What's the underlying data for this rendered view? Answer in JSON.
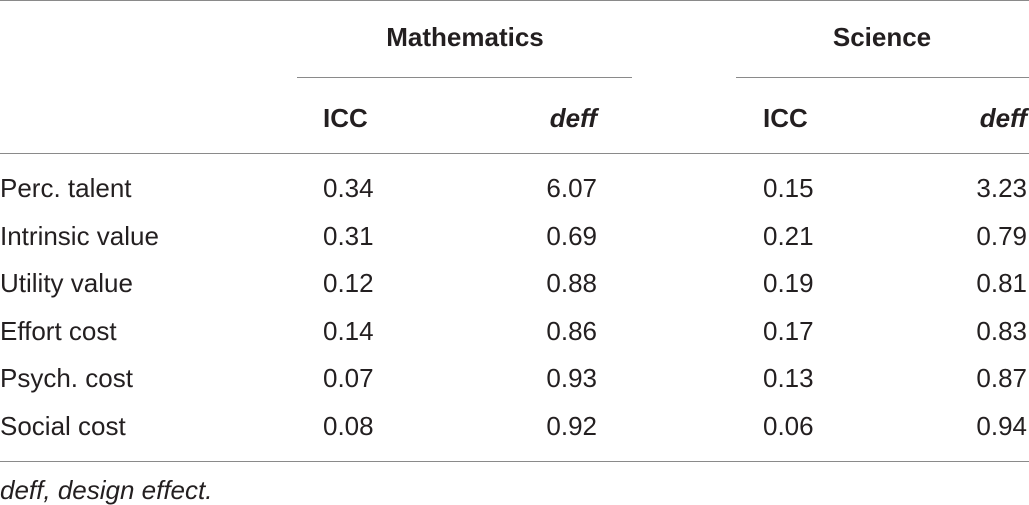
{
  "table": {
    "groups": [
      "Mathematics",
      "Science"
    ],
    "columns": [
      "ICC",
      "deff",
      "ICC",
      "deff"
    ],
    "rows": [
      [
        "Perc. talent",
        "0.34",
        "6.07",
        "0.15",
        "3.23"
      ],
      [
        "Intrinsic value",
        "0.31",
        "0.69",
        "0.21",
        "0.79"
      ],
      [
        "Utility value",
        "0.12",
        "0.88",
        "0.19",
        "0.81"
      ],
      [
        "Effort cost",
        "0.14",
        "0.86",
        "0.17",
        "0.83"
      ],
      [
        "Psych. cost",
        "0.07",
        "0.93",
        "0.13",
        "0.87"
      ],
      [
        "Social cost",
        "0.08",
        "0.92",
        "0.06",
        "0.94"
      ]
    ]
  },
  "footnote": "deff, design effect."
}
